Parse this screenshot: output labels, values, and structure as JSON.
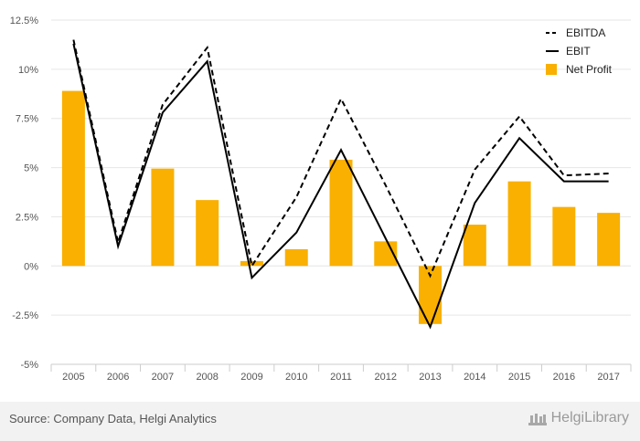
{
  "chart_data": {
    "type": "bar",
    "categories": [
      "2005",
      "2006",
      "2007",
      "2008",
      "2009",
      "2010",
      "2011",
      "2012",
      "2013",
      "2014",
      "2015",
      "2016",
      "2017"
    ],
    "ylim": [
      -5,
      12.5
    ],
    "yticks": [
      12.5,
      10,
      7.5,
      5,
      2.5,
      0,
      -2.5,
      -5
    ],
    "ytick_labels": [
      "12.5%",
      "10%",
      "7.5%",
      "5%",
      "2.5%",
      "0%",
      "-2.5%",
      "-5%"
    ],
    "grid": true,
    "legend_position": "top-right",
    "series": [
      {
        "name": "EBITDA",
        "type": "line",
        "style": "dashed",
        "color": "#000000",
        "values": [
          11.5,
          1.2,
          8.2,
          11.1,
          0.0,
          3.5,
          8.5,
          4.1,
          -0.5,
          4.9,
          7.6,
          4.6,
          4.7
        ]
      },
      {
        "name": "EBIT",
        "type": "line",
        "style": "solid",
        "color": "#000000",
        "values": [
          11.3,
          1.0,
          7.8,
          10.4,
          -0.6,
          1.7,
          5.9,
          1.4,
          -3.1,
          3.2,
          6.5,
          4.3,
          4.3
        ]
      },
      {
        "name": "Net Profit",
        "type": "bar",
        "color": "#f9b000",
        "values": [
          8.9,
          0.0,
          4.95,
          3.35,
          0.25,
          0.85,
          5.4,
          1.25,
          -2.95,
          2.1,
          4.3,
          3.0,
          2.7
        ]
      }
    ]
  },
  "footer": {
    "source": "Source: Company Data, Helgi Analytics",
    "brand": "HelgiLibrary"
  }
}
